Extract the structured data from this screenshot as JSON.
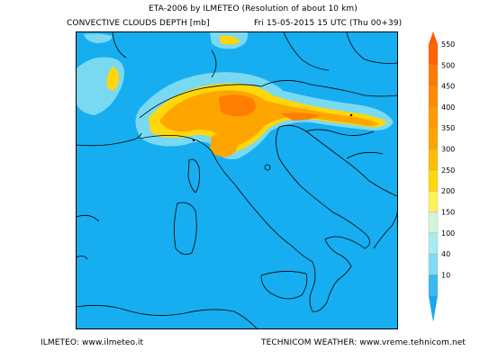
{
  "header": {
    "title": "ETA-2006 by ILMETEO (Resolution of about 10 km)",
    "field": "CONVECTIVE CLOUDS DEPTH [mb]",
    "date": "Fri 15-05-2015 15 UTC (Thu 00+39)"
  },
  "footer": {
    "left": "ILMETEO: www.ilmeteo.it",
    "right": "TECHNICOM WEATHER: www.vreme.tehnicom.net"
  },
  "colors": {
    "background_sea": "#16aef0",
    "land_base": "#15aef0",
    "outline": "#000000"
  },
  "colorbar": {
    "levels": [
      {
        "label": "10",
        "color": "#3db8ee"
      },
      {
        "label": "40",
        "color": "#7fdcf2"
      },
      {
        "label": "100",
        "color": "#a9ecf0"
      },
      {
        "label": "150",
        "color": "#d4f4dc"
      },
      {
        "label": "200",
        "color": "#fff35a"
      },
      {
        "label": "250",
        "color": "#ffd70a"
      },
      {
        "label": "300",
        "color": "#ffbe00"
      },
      {
        "label": "350",
        "color": "#ffa500"
      },
      {
        "label": "400",
        "color": "#ff9a00"
      },
      {
        "label": "450",
        "color": "#ff8a00"
      },
      {
        "label": "500",
        "color": "#ff7a00"
      },
      {
        "label": "550",
        "color": "#ff6400"
      }
    ],
    "top_color": "#ff5a00",
    "bottom_color": "#18a8ef"
  }
}
